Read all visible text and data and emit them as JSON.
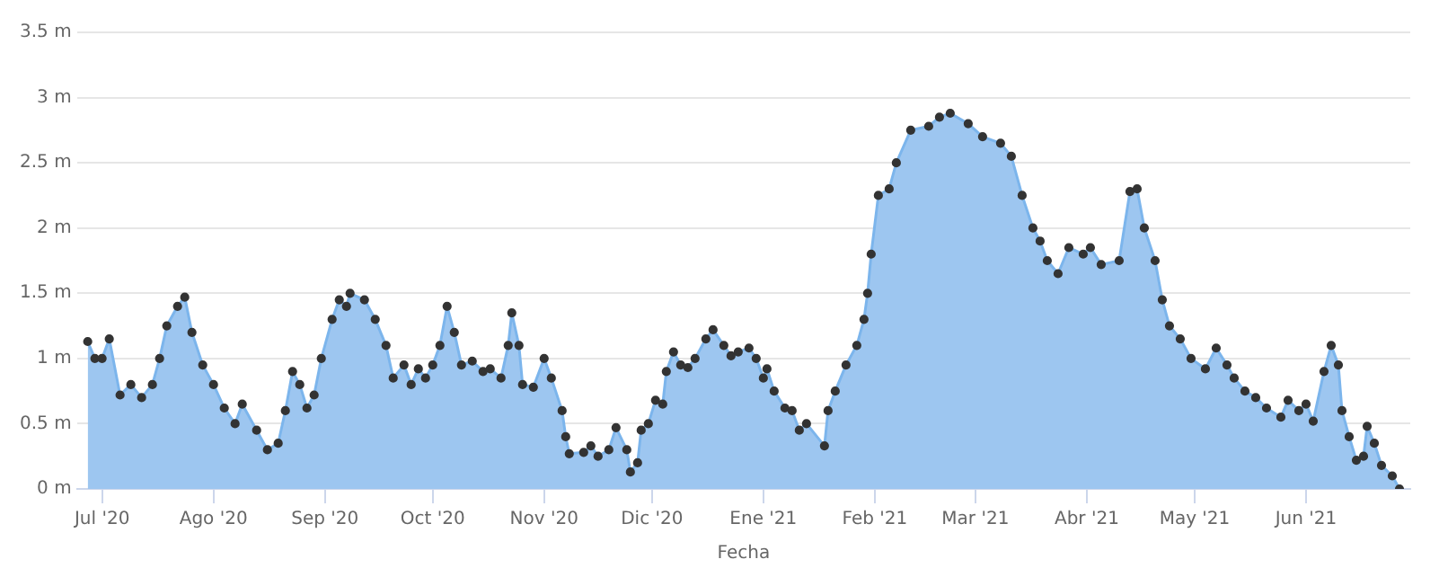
{
  "chart_data": {
    "type": "area",
    "xlabel": "Fecha",
    "marker": "circle",
    "grid": "y",
    "legend": false,
    "xlim": [
      "2020-06-24",
      "2021-06-30"
    ],
    "xticks": [
      {
        "value": "2020-07-01",
        "label": "Jul '20"
      },
      {
        "value": "2020-08-01",
        "label": "Ago '20"
      },
      {
        "value": "2020-09-01",
        "label": "Sep '20"
      },
      {
        "value": "2020-10-01",
        "label": "Oct '20"
      },
      {
        "value": "2020-11-01",
        "label": "Nov '20"
      },
      {
        "value": "2020-12-01",
        "label": "Dic '20"
      },
      {
        "value": "2021-01-01",
        "label": "Ene '21"
      },
      {
        "value": "2021-02-01",
        "label": "Feb '21"
      },
      {
        "value": "2021-03-01",
        "label": "Mar '21"
      },
      {
        "value": "2021-04-01",
        "label": "Abr '21"
      },
      {
        "value": "2021-05-01",
        "label": "May '21"
      },
      {
        "value": "2021-06-01",
        "label": "Jun '21"
      }
    ],
    "ylim": [
      0,
      3.5
    ],
    "yticks": [
      {
        "value": 0,
        "label": "0 m"
      },
      {
        "value": 0.5,
        "label": "0.5 m"
      },
      {
        "value": 1,
        "label": "1 m"
      },
      {
        "value": 1.5,
        "label": "1.5 m"
      },
      {
        "value": 2,
        "label": "2 m"
      },
      {
        "value": 2.5,
        "label": "2.5 m"
      },
      {
        "value": 3,
        "label": "3 m"
      },
      {
        "value": 3.5,
        "label": "3.5 m"
      }
    ],
    "x": [
      "2020-06-27",
      "2020-06-29",
      "2020-07-01",
      "2020-07-03",
      "2020-07-06",
      "2020-07-09",
      "2020-07-12",
      "2020-07-15",
      "2020-07-17",
      "2020-07-19",
      "2020-07-22",
      "2020-07-24",
      "2020-07-26",
      "2020-07-29",
      "2020-08-01",
      "2020-08-04",
      "2020-08-07",
      "2020-08-09",
      "2020-08-13",
      "2020-08-16",
      "2020-08-19",
      "2020-08-21",
      "2020-08-23",
      "2020-08-25",
      "2020-08-27",
      "2020-08-29",
      "2020-08-31",
      "2020-09-03",
      "2020-09-05",
      "2020-09-07",
      "2020-09-08",
      "2020-09-12",
      "2020-09-15",
      "2020-09-18",
      "2020-09-20",
      "2020-09-23",
      "2020-09-25",
      "2020-09-27",
      "2020-09-29",
      "2020-10-01",
      "2020-10-03",
      "2020-10-05",
      "2020-10-07",
      "2020-10-09",
      "2020-10-12",
      "2020-10-15",
      "2020-10-17",
      "2020-10-20",
      "2020-10-22",
      "2020-10-23",
      "2020-10-25",
      "2020-10-26",
      "2020-10-29",
      "2020-11-01",
      "2020-11-03",
      "2020-11-06",
      "2020-11-07",
      "2020-11-08",
      "2020-11-12",
      "2020-11-14",
      "2020-11-16",
      "2020-11-19",
      "2020-11-21",
      "2020-11-24",
      "2020-11-25",
      "2020-11-27",
      "2020-11-28",
      "2020-11-30",
      "2020-12-02",
      "2020-12-04",
      "2020-12-05",
      "2020-12-07",
      "2020-12-09",
      "2020-12-11",
      "2020-12-13",
      "2020-12-16",
      "2020-12-18",
      "2020-12-21",
      "2020-12-23",
      "2020-12-25",
      "2020-12-28",
      "2020-12-30",
      "2021-01-01",
      "2021-01-02",
      "2021-01-04",
      "2021-01-07",
      "2021-01-09",
      "2021-01-11",
      "2021-01-13",
      "2021-01-18",
      "2021-01-19",
      "2021-01-21",
      "2021-01-24",
      "2021-01-27",
      "2021-01-29",
      "2021-01-30",
      "2021-01-31",
      "2021-02-02",
      "2021-02-05",
      "2021-02-07",
      "2021-02-11",
      "2021-02-16",
      "2021-02-19",
      "2021-02-22",
      "2021-02-27",
      "2021-03-03",
      "2021-03-08",
      "2021-03-11",
      "2021-03-14",
      "2021-03-17",
      "2021-03-19",
      "2021-03-21",
      "2021-03-24",
      "2021-03-27",
      "2021-03-31",
      "2021-04-02",
      "2021-04-05",
      "2021-04-10",
      "2021-04-13",
      "2021-04-15",
      "2021-04-17",
      "2021-04-20",
      "2021-04-22",
      "2021-04-24",
      "2021-04-27",
      "2021-04-30",
      "2021-05-04",
      "2021-05-07",
      "2021-05-10",
      "2021-05-12",
      "2021-05-15",
      "2021-05-18",
      "2021-05-21",
      "2021-05-25",
      "2021-05-27",
      "2021-05-30",
      "2021-06-01",
      "2021-06-03",
      "2021-06-06",
      "2021-06-08",
      "2021-06-10",
      "2021-06-11",
      "2021-06-13",
      "2021-06-15",
      "2021-06-17",
      "2021-06-18",
      "2021-06-20",
      "2021-06-22",
      "2021-06-25",
      "2021-06-27"
    ],
    "series": [
      {
        "color": "#9dc6f0",
        "values": [
          1.13,
          1.0,
          1.0,
          1.15,
          0.72,
          0.8,
          0.7,
          0.8,
          1.0,
          1.25,
          1.4,
          1.47,
          1.2,
          0.95,
          0.8,
          0.62,
          0.5,
          0.65,
          0.45,
          0.3,
          0.35,
          0.6,
          0.9,
          0.8,
          0.62,
          0.72,
          1.0,
          1.3,
          1.45,
          1.4,
          1.5,
          1.45,
          1.3,
          1.1,
          0.85,
          0.95,
          0.8,
          0.92,
          0.85,
          0.95,
          1.1,
          1.4,
          1.2,
          0.95,
          0.98,
          0.9,
          0.92,
          0.85,
          1.1,
          1.35,
          1.1,
          0.8,
          0.78,
          1.0,
          0.85,
          0.6,
          0.4,
          0.27,
          0.28,
          0.33,
          0.25,
          0.3,
          0.47,
          0.3,
          0.13,
          0.2,
          0.45,
          0.5,
          0.68,
          0.65,
          0.9,
          1.05,
          0.95,
          0.93,
          1.0,
          1.15,
          1.22,
          1.1,
          1.02,
          1.05,
          1.08,
          1.0,
          0.85,
          0.92,
          0.75,
          0.62,
          0.6,
          0.45,
          0.5,
          0.33,
          0.6,
          0.75,
          0.95,
          1.1,
          1.3,
          1.5,
          1.8,
          2.25,
          2.3,
          2.5,
          2.75,
          2.78,
          2.85,
          2.88,
          2.8,
          2.7,
          2.65,
          2.55,
          2.25,
          2.0,
          1.9,
          1.75,
          1.65,
          1.85,
          1.8,
          1.85,
          1.72,
          1.75,
          2.28,
          2.3,
          2.0,
          1.75,
          1.45,
          1.25,
          1.15,
          1.0,
          0.92,
          1.08,
          0.95,
          0.85,
          0.75,
          0.7,
          0.62,
          0.55,
          0.68,
          0.6,
          0.65,
          0.52,
          0.9,
          1.1,
          0.95,
          0.6,
          0.4,
          0.22,
          0.25,
          0.48,
          0.35,
          0.18,
          0.1,
          0.0
        ]
      }
    ]
  }
}
